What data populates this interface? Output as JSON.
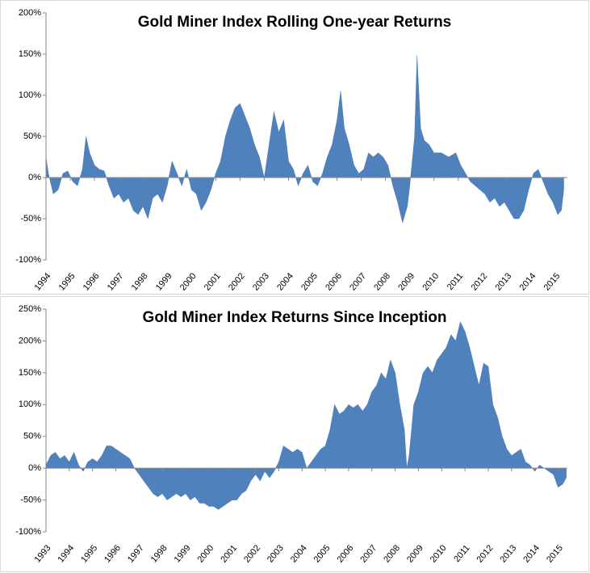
{
  "chart_data": [
    {
      "type": "area",
      "title": "Gold Miner Index Rolling One-year Returns",
      "color": "#4f81bd",
      "x": [
        1994.0,
        1994.1,
        1994.3,
        1994.5,
        1994.7,
        1994.9,
        1995.1,
        1995.3,
        1995.5,
        1995.65,
        1995.8,
        1996.0,
        1996.2,
        1996.4,
        1996.6,
        1996.8,
        1997.0,
        1997.2,
        1997.4,
        1997.6,
        1997.8,
        1998.0,
        1998.2,
        1998.4,
        1998.6,
        1998.8,
        1999.0,
        1999.2,
        1999.4,
        1999.6,
        1999.8,
        2000.0,
        2000.2,
        2000.4,
        2000.6,
        2000.8,
        2001.0,
        2001.2,
        2001.4,
        2001.6,
        2001.8,
        2002.0,
        2002.2,
        2002.4,
        2002.6,
        2002.8,
        2003.0,
        2003.2,
        2003.4,
        2003.6,
        2003.8,
        2004.0,
        2004.2,
        2004.4,
        2004.6,
        2004.8,
        2005.0,
        2005.2,
        2005.4,
        2005.6,
        2005.8,
        2006.0,
        2006.15,
        2006.3,
        2006.5,
        2006.7,
        2006.9,
        2007.1,
        2007.3,
        2007.5,
        2007.7,
        2007.9,
        2008.1,
        2008.3,
        2008.5,
        2008.7,
        2008.9,
        2009.0,
        2009.2,
        2009.3,
        2009.45,
        2009.6,
        2009.8,
        2010.0,
        2010.3,
        2010.6,
        2010.9,
        2011.1,
        2011.3,
        2011.5,
        2011.7,
        2011.9,
        2012.1,
        2012.3,
        2012.5,
        2012.7,
        2012.9,
        2013.1,
        2013.3,
        2013.5,
        2013.7,
        2013.9,
        2014.1,
        2014.3,
        2014.5,
        2014.7,
        2014.9,
        2015.1,
        2015.25,
        2015.35
      ],
      "values": [
        25,
        5,
        -20,
        -15,
        5,
        8,
        -5,
        -10,
        10,
        50,
        30,
        15,
        10,
        8,
        -10,
        -25,
        -20,
        -30,
        -25,
        -40,
        -45,
        -35,
        -50,
        -25,
        -20,
        -30,
        -10,
        20,
        5,
        -10,
        10,
        -15,
        -20,
        -40,
        -30,
        -15,
        5,
        20,
        50,
        70,
        85,
        90,
        75,
        60,
        40,
        25,
        0,
        40,
        80,
        55,
        70,
        20,
        10,
        -10,
        5,
        15,
        -5,
        -10,
        5,
        25,
        40,
        70,
        105,
        60,
        40,
        15,
        5,
        10,
        30,
        25,
        30,
        25,
        15,
        -10,
        -30,
        -55,
        -35,
        -10,
        50,
        148,
        60,
        45,
        40,
        30,
        30,
        25,
        30,
        15,
        5,
        -5,
        -10,
        -15,
        -20,
        -30,
        -25,
        -35,
        -30,
        -40,
        -50,
        -50,
        -40,
        -15,
        5,
        10,
        -5,
        -20,
        -30,
        -45,
        -40,
        -15
      ],
      "xlim": [
        1994,
        2015.5
      ],
      "ylim": [
        -100,
        200
      ],
      "xticks": [
        1994,
        1995,
        1996,
        1997,
        1998,
        1999,
        2000,
        2001,
        2002,
        2003,
        2004,
        2005,
        2006,
        2007,
        2008,
        2009,
        2010,
        2011,
        2012,
        2013,
        2014,
        2015
      ],
      "yticks": [
        {
          "value": -100,
          "label": "-100%"
        },
        {
          "value": -50,
          "label": "-50%"
        },
        {
          "value": 0,
          "label": "0%"
        },
        {
          "value": 50,
          "label": "50%"
        },
        {
          "value": 100,
          "label": "100%"
        },
        {
          "value": 150,
          "label": "150%"
        },
        {
          "value": 200,
          "label": "200%"
        }
      ]
    },
    {
      "type": "area",
      "title": "Gold Miner Index Returns Since Inception",
      "color": "#4f81bd",
      "x": [
        1993.0,
        1993.2,
        1993.4,
        1993.6,
        1993.8,
        1994.0,
        1994.2,
        1994.4,
        1994.6,
        1994.8,
        1995.0,
        1995.2,
        1995.4,
        1995.6,
        1995.8,
        1996.0,
        1996.2,
        1996.4,
        1996.6,
        1996.8,
        1997.0,
        1997.2,
        1997.4,
        1997.6,
        1997.8,
        1998.0,
        1998.2,
        1998.4,
        1998.6,
        1998.8,
        1999.0,
        1999.2,
        1999.4,
        1999.6,
        1999.8,
        2000.0,
        2000.2,
        2000.4,
        2000.6,
        2000.8,
        2001.0,
        2001.2,
        2001.4,
        2001.6,
        2001.8,
        2002.0,
        2002.2,
        2002.4,
        2002.6,
        2002.8,
        2003.0,
        2003.2,
        2003.4,
        2003.6,
        2003.8,
        2004.0,
        2004.2,
        2004.4,
        2004.6,
        2004.8,
        2005.0,
        2005.2,
        2005.4,
        2005.6,
        2005.8,
        2006.0,
        2006.2,
        2006.4,
        2006.6,
        2006.8,
        2007.0,
        2007.2,
        2007.4,
        2007.6,
        2007.8,
        2008.0,
        2008.2,
        2008.4,
        2008.5,
        2008.6,
        2008.8,
        2009.0,
        2009.2,
        2009.4,
        2009.6,
        2009.8,
        2010.0,
        2010.2,
        2010.4,
        2010.6,
        2010.8,
        2011.0,
        2011.2,
        2011.4,
        2011.6,
        2011.8,
        2012.0,
        2012.2,
        2012.4,
        2012.6,
        2012.8,
        2013.0,
        2013.2,
        2013.4,
        2013.6,
        2013.8,
        2014.0,
        2014.2,
        2014.4,
        2014.6,
        2014.8,
        2015.0,
        2015.2,
        2015.35
      ],
      "values": [
        5,
        20,
        25,
        15,
        20,
        10,
        25,
        5,
        -5,
        10,
        15,
        10,
        20,
        35,
        35,
        30,
        25,
        20,
        15,
        0,
        -10,
        -20,
        -30,
        -40,
        -45,
        -40,
        -50,
        -45,
        -40,
        -45,
        -40,
        -50,
        -45,
        -55,
        -55,
        -60,
        -60,
        -65,
        -60,
        -55,
        -50,
        -50,
        -40,
        -35,
        -20,
        -10,
        -20,
        -5,
        -15,
        -5,
        10,
        35,
        30,
        25,
        30,
        25,
        0,
        10,
        20,
        30,
        35,
        60,
        100,
        85,
        90,
        100,
        95,
        100,
        90,
        100,
        120,
        130,
        150,
        140,
        170,
        150,
        100,
        60,
        0,
        20,
        100,
        120,
        150,
        160,
        150,
        170,
        180,
        190,
        210,
        200,
        230,
        215,
        190,
        160,
        130,
        165,
        160,
        100,
        80,
        50,
        30,
        20,
        25,
        30,
        10,
        5,
        -5,
        5,
        0,
        -5,
        -10,
        -30,
        -25,
        -15
      ],
      "xlim": [
        1993,
        2015.4
      ],
      "ylim": [
        -100,
        250
      ],
      "xticks": [
        1993,
        1994,
        1995,
        1996,
        1997,
        1998,
        1999,
        2000,
        2001,
        2002,
        2003,
        2004,
        2005,
        2006,
        2007,
        2008,
        2009,
        2010,
        2011,
        2012,
        2013,
        2014,
        2015
      ],
      "yticks": [
        {
          "value": -100,
          "label": "-100%"
        },
        {
          "value": -50,
          "label": "-50%"
        },
        {
          "value": 0,
          "label": "0%"
        },
        {
          "value": 50,
          "label": "50%"
        },
        {
          "value": 100,
          "label": "100%"
        },
        {
          "value": 150,
          "label": "150%"
        },
        {
          "value": 200,
          "label": "200%"
        },
        {
          "value": 250,
          "label": "250%"
        }
      ]
    }
  ]
}
